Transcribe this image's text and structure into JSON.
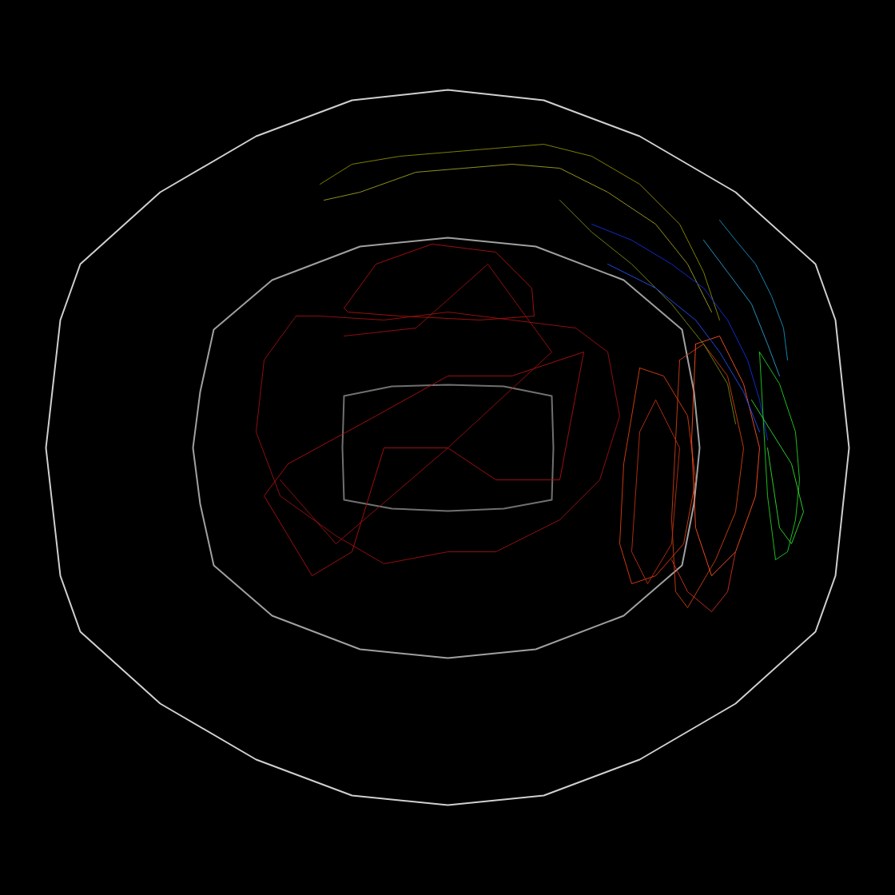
{
  "chart_data": {
    "type": "line",
    "tick_labels": false,
    "grid": false,
    "xlim": [
      0,
      1120
    ],
    "ylim": [
      1120,
      0
    ],
    "series": [
      {
        "color": "#d0d0d0",
        "x": [
          100,
          200,
          320,
          440,
          560,
          680,
          800,
          920,
          1020,
          1045,
          1062,
          1045,
          1020,
          920,
          800,
          680,
          560,
          440,
          320,
          200,
          100,
          75,
          57,
          75,
          100
        ],
        "y": [
          330,
          240,
          170,
          125,
          112,
          125,
          170,
          240,
          330,
          400,
          560,
          720,
          790,
          880,
          950,
          995,
          1007,
          995,
          950,
          880,
          790,
          720,
          560,
          400,
          330
        ]
      },
      {
        "color": "#a0a0a0",
        "x": [
          267,
          340,
          450,
          560,
          670,
          780,
          853,
          868,
          875,
          868,
          853,
          780,
          670,
          560,
          450,
          340,
          267,
          250,
          241,
          250,
          267
        ],
        "y": [
          412,
          350,
          308,
          297,
          308,
          350,
          412,
          490,
          560,
          630,
          707,
          770,
          812,
          823,
          812,
          770,
          707,
          630,
          560,
          490,
          412
        ]
      },
      {
        "color": "#707070",
        "x": [
          430,
          490,
          560,
          630,
          690,
          692,
          690,
          630,
          560,
          490,
          430,
          428,
          430
        ],
        "y": [
          495,
          483,
          481,
          483,
          495,
          560,
          625,
          636,
          639,
          636,
          625,
          560,
          495
        ]
      },
      {
        "color": "#b01010",
        "x": [
          430,
          470,
          540,
          620,
          665,
          668,
          600,
          500,
          435,
          430
        ],
        "y": [
          385,
          330,
          305,
          315,
          360,
          395,
          400,
          395,
          390,
          385
        ]
      },
      {
        "color": "#a01010",
        "x": [
          370,
          330,
          320,
          350,
          420,
          480,
          560,
          620,
          700,
          750,
          775,
          760,
          720,
          640,
          560,
          480,
          400,
          370
        ],
        "y": [
          395,
          450,
          540,
          620,
          670,
          705,
          690,
          690,
          650,
          600,
          520,
          440,
          410,
          400,
          390,
          400,
          395,
          395
        ]
      },
      {
        "color": "#b01010",
        "x": [
          360,
          470,
          560,
          640,
          730,
          700,
          620,
          560,
          480,
          440,
          390,
          330,
          360
        ],
        "y": [
          580,
          520,
          470,
          470,
          440,
          600,
          600,
          560,
          560,
          690,
          720,
          620,
          580
        ]
      },
      {
        "color": "#a01010",
        "x": [
          430,
          520,
          610,
          690,
          560,
          420,
          350
        ],
        "y": [
          420,
          410,
          330,
          440,
          560,
          680,
          600
        ]
      },
      {
        "color": "#e04010",
        "x": [
          800,
          830,
          860,
          870,
          855,
          820,
          790,
          775,
          780,
          800
        ],
        "y": [
          460,
          470,
          520,
          600,
          680,
          720,
          730,
          680,
          580,
          460
        ]
      },
      {
        "color": "#d04010",
        "x": [
          850,
          880,
          910,
          930,
          920,
          895,
          860,
          845,
          840,
          850
        ],
        "y": [
          450,
          430,
          470,
          560,
          640,
          700,
          760,
          740,
          650,
          450
        ]
      },
      {
        "color": "#ff5020",
        "x": [
          870,
          900,
          930,
          950,
          945,
          920,
          890,
          870,
          865,
          870
        ],
        "y": [
          430,
          420,
          480,
          560,
          620,
          690,
          720,
          660,
          550,
          430
        ]
      },
      {
        "color": "#c03010",
        "x": [
          800,
          820,
          850,
          840,
          810,
          790,
          800
        ],
        "y": [
          540,
          500,
          560,
          680,
          730,
          690,
          540
        ]
      },
      {
        "color": "#d03020",
        "x": [
          840,
          860,
          890,
          910,
          920
        ],
        "y": [
          700,
          740,
          765,
          740,
          690
        ]
      },
      {
        "color": "#8c8c00",
        "x": [
          400,
          440,
          500,
          560,
          620,
          680,
          740,
          800,
          850,
          880,
          900
        ],
        "y": [
          230,
          205,
          195,
          190,
          185,
          180,
          195,
          230,
          280,
          340,
          400
        ]
      },
      {
        "color": "#a0a020",
        "x": [
          405,
          450,
          520,
          580,
          640,
          700,
          760,
          820,
          860,
          890
        ],
        "y": [
          250,
          240,
          215,
          210,
          205,
          210,
          240,
          280,
          330,
          390
        ]
      },
      {
        "color": "#7a8a10",
        "x": [
          700,
          740,
          790,
          840,
          880,
          910,
          920
        ],
        "y": [
          250,
          290,
          330,
          380,
          430,
          480,
          530
        ]
      },
      {
        "color": "#1030e0",
        "x": [
          740,
          790,
          840,
          880,
          910,
          935,
          950,
          960
        ],
        "y": [
          280,
          300,
          330,
          360,
          400,
          450,
          500,
          550
        ]
      },
      {
        "color": "#2050ff",
        "x": [
          760,
          820,
          870,
          900,
          930,
          950
        ],
        "y": [
          330,
          360,
          400,
          440,
          490,
          540
        ]
      },
      {
        "color": "#1a8fc0",
        "x": [
          900,
          920,
          945,
          965,
          980,
          985
        ],
        "y": [
          275,
          300,
          330,
          370,
          410,
          450
        ]
      },
      {
        "color": "#2aa0d0",
        "x": [
          880,
          910,
          940,
          960,
          975
        ],
        "y": [
          300,
          340,
          380,
          430,
          470
        ]
      },
      {
        "color": "#20d020",
        "x": [
          950,
          975,
          995,
          1000,
          995,
          985,
          970,
          960,
          950
        ],
        "y": [
          440,
          480,
          540,
          600,
          650,
          690,
          700,
          620,
          440
        ]
      },
      {
        "color": "#30e030",
        "x": [
          940,
          965,
          990,
          1005,
          990,
          975,
          960
        ],
        "y": [
          500,
          540,
          580,
          640,
          680,
          660,
          560
        ]
      }
    ]
  }
}
